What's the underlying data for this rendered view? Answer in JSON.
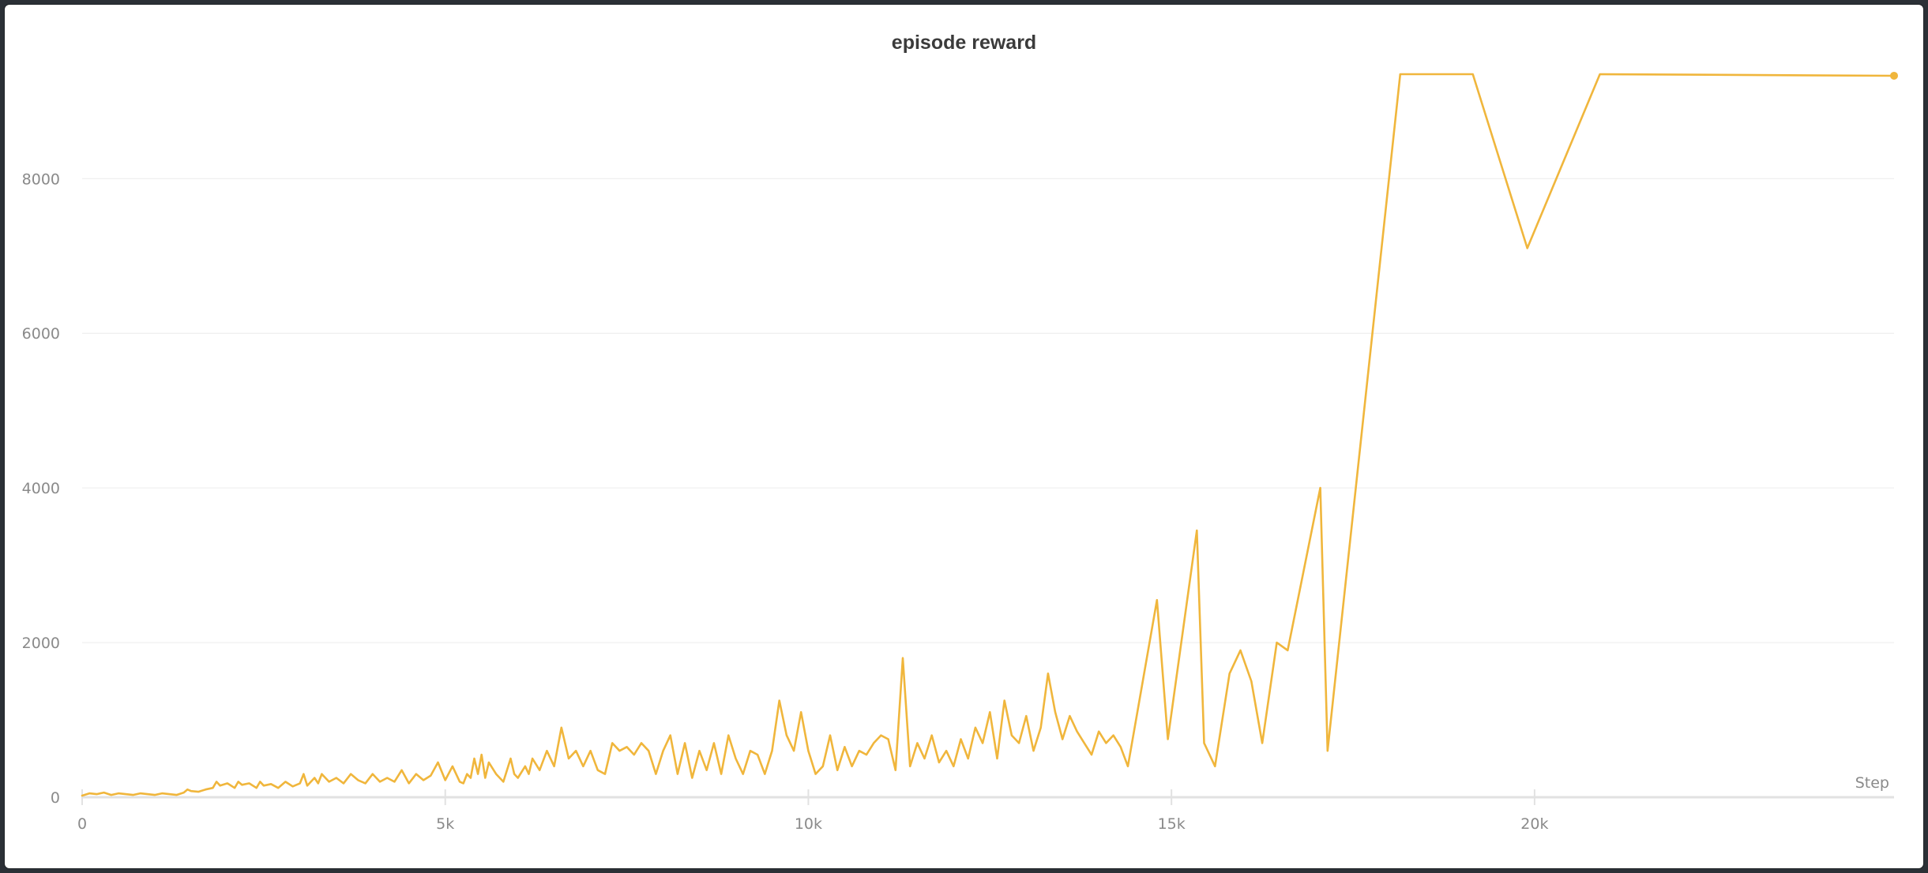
{
  "chart_data": {
    "type": "line",
    "title": "episode reward",
    "xlabel": "Step",
    "ylabel": "",
    "xlim": [
      0,
      24950
    ],
    "ylim": [
      0,
      9350
    ],
    "x_ticks": [
      0,
      5000,
      10000,
      15000,
      20000
    ],
    "x_tick_labels": [
      "0",
      "5k",
      "10k",
      "15k",
      "20k"
    ],
    "y_ticks": [
      0,
      2000,
      4000,
      6000,
      8000
    ],
    "y_tick_labels": [
      "0",
      "2000",
      "4000",
      "6000",
      "8000"
    ],
    "grid": true,
    "legend": "none",
    "series_color": "#f0b63c",
    "series": [
      {
        "x": [
          0,
          100,
          200,
          300,
          400,
          500,
          600,
          700,
          800,
          900,
          1000,
          1100,
          1200,
          1300,
          1400,
          1450,
          1500,
          1600,
          1700,
          1800,
          1850,
          1900,
          2000,
          2100,
          2150,
          2200,
          2300,
          2400,
          2450,
          2500,
          2600,
          2700,
          2800,
          2900,
          3000,
          3050,
          3100,
          3200,
          3250,
          3300,
          3400,
          3500,
          3600,
          3700,
          3800,
          3900,
          4000,
          4100,
          4200,
          4300,
          4400,
          4500,
          4600,
          4700,
          4800,
          4900,
          5000,
          5100,
          5200,
          5250,
          5300,
          5350,
          5400,
          5450,
          5500,
          5550,
          5600,
          5700,
          5800,
          5900,
          5950,
          6000,
          6100,
          6150,
          6200,
          6300,
          6400,
          6500,
          6600,
          6700,
          6800,
          6900,
          7000,
          7100,
          7200,
          7300,
          7400,
          7500,
          7600,
          7700,
          7800,
          7900,
          8000,
          8100,
          8200,
          8300,
          8400,
          8500,
          8600,
          8700,
          8800,
          8900,
          9000,
          9100,
          9200,
          9300,
          9400,
          9500,
          9600,
          9700,
          9800,
          9900,
          10000,
          10100,
          10200,
          10300,
          10400,
          10500,
          10600,
          10700,
          10800,
          10900,
          11000,
          11100,
          11200,
          11300,
          11400,
          11500,
          11600,
          11700,
          11800,
          11900,
          12000,
          12100,
          12200,
          12300,
          12400,
          12500,
          12600,
          12700,
          12800,
          12900,
          13000,
          13100,
          13200,
          13300,
          13400,
          13500,
          13600,
          13700,
          13800,
          13900,
          14000,
          14100,
          14200,
          14300,
          14400,
          14800,
          14950,
          15350,
          15450,
          15600,
          15800,
          15950,
          16100,
          16250,
          16450,
          16600,
          17050,
          17150,
          18150,
          19150,
          19900,
          20900,
          24950
        ],
        "y": [
          20,
          50,
          40,
          60,
          30,
          50,
          40,
          30,
          50,
          40,
          30,
          50,
          40,
          30,
          60,
          100,
          80,
          70,
          100,
          120,
          200,
          150,
          180,
          120,
          200,
          160,
          180,
          120,
          200,
          150,
          170,
          120,
          200,
          140,
          180,
          300,
          150,
          250,
          180,
          300,
          200,
          250,
          180,
          300,
          220,
          180,
          300,
          200,
          250,
          200,
          350,
          180,
          300,
          220,
          280,
          450,
          220,
          400,
          200,
          180,
          300,
          250,
          500,
          300,
          550,
          250,
          450,
          300,
          200,
          500,
          300,
          250,
          400,
          300,
          500,
          350,
          600,
          400,
          900,
          500,
          600,
          400,
          600,
          350,
          300,
          700,
          600,
          650,
          550,
          700,
          600,
          300,
          600,
          800,
          300,
          700,
          250,
          600,
          350,
          700,
          300,
          800,
          500,
          300,
          600,
          550,
          300,
          600,
          1250,
          800,
          600,
          1100,
          600,
          300,
          400,
          800,
          350,
          650,
          400,
          600,
          550,
          700,
          800,
          750,
          350,
          1800,
          400,
          700,
          500,
          800,
          450,
          600,
          400,
          750,
          500,
          900,
          700,
          1100,
          500,
          1250,
          800,
          700,
          1050,
          600,
          900,
          1600,
          1100,
          750,
          1050,
          850,
          700,
          550,
          850,
          700,
          800,
          650,
          400,
          2550,
          750,
          3450,
          700,
          400,
          1600,
          1900,
          1500,
          700,
          2000,
          1900,
          4000,
          600,
          9350,
          9350,
          7100,
          9350,
          9330
        ]
      }
    ]
  }
}
